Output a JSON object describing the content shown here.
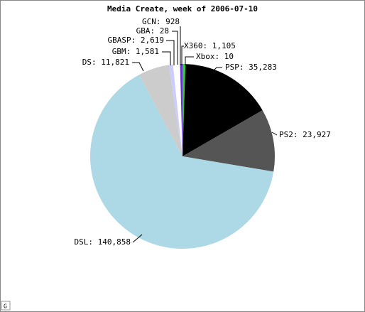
{
  "chart_data": {
    "type": "pie",
    "title": "Media Create, week of 2006-07-10",
    "categories": [
      "X360: 1,105",
      "Xbox: 10",
      "PSP: 35,283",
      "PS2: 23,927",
      "DSL: 140,858",
      "DS: 11,821",
      "GBM: 1,581",
      "GBASP: 2,619",
      "GBA: 28",
      "GCN: 928"
    ],
    "values": [
      1105,
      10,
      35283,
      23927,
      140858,
      11821,
      1581,
      2619,
      28,
      928
    ],
    "colors": [
      "#33cc33",
      "#ffffff",
      "#000000",
      "#555555",
      "#add8e6",
      "#cccccc",
      "#ccccff",
      "#ffffff",
      "#ffcccc",
      "#6633cc"
    ]
  }
}
